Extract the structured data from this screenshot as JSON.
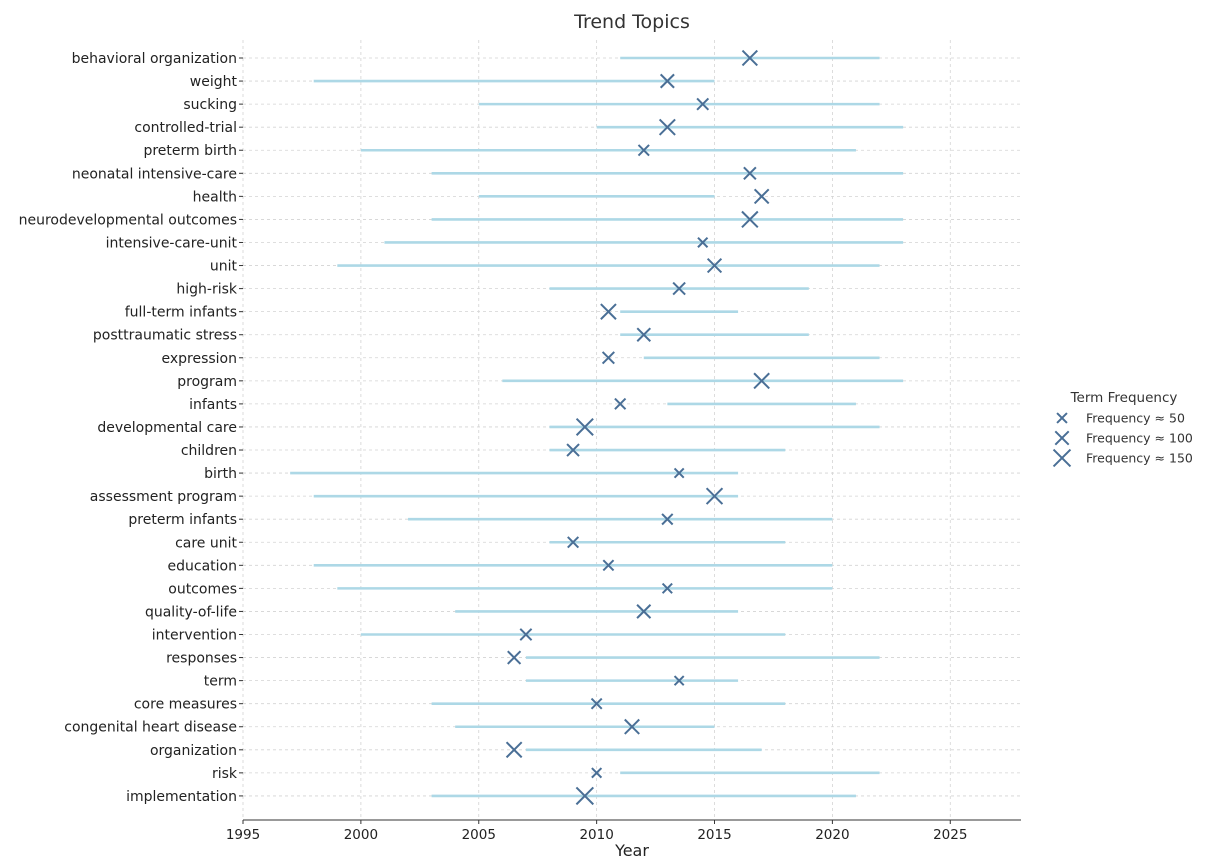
{
  "chart_data": {
    "type": "scatter",
    "title": "Trend Topics",
    "xlabel": "Year",
    "ylabel": "",
    "xlim": [
      1995,
      2028
    ],
    "xticks": [
      1995,
      2000,
      2005,
      2010,
      2015,
      2020,
      2025
    ],
    "grid": true,
    "legend": {
      "title": "Term Frequency",
      "placement": "right",
      "items": [
        {
          "label": "Frequency ≈ 50",
          "frequency": 50
        },
        {
          "label": "Frequency ≈ 100",
          "frequency": 100
        },
        {
          "label": "Frequency ≈ 150",
          "frequency": 150
        }
      ]
    },
    "colors": {
      "range_line": "#add8e6",
      "marker": "#4a6f96"
    },
    "topics": [
      {
        "term": "behavioral organization",
        "start": 2011,
        "end": 2022,
        "peak": 2016.5,
        "frequency": 120
      },
      {
        "term": "weight",
        "start": 1998,
        "end": 2015,
        "peak": 2013,
        "frequency": 100
      },
      {
        "term": "sucking",
        "start": 2005,
        "end": 2022,
        "peak": 2014.5,
        "frequency": 70
      },
      {
        "term": "controlled-trial",
        "start": 2010,
        "end": 2023,
        "peak": 2013,
        "frequency": 130
      },
      {
        "term": "preterm birth",
        "start": 2000,
        "end": 2021,
        "peak": 2012,
        "frequency": 60
      },
      {
        "term": "neonatal intensive-care",
        "start": 2003,
        "end": 2023,
        "peak": 2016.5,
        "frequency": 80
      },
      {
        "term": "health",
        "start": 2005,
        "end": 2015,
        "peak": 2017,
        "frequency": 110
      },
      {
        "term": "neurodevelopmental outcomes",
        "start": 2003,
        "end": 2023,
        "peak": 2016.5,
        "frequency": 135
      },
      {
        "term": "intensive-care-unit",
        "start": 2001,
        "end": 2023,
        "peak": 2014.5,
        "frequency": 45
      },
      {
        "term": "unit",
        "start": 1999,
        "end": 2022,
        "peak": 2015,
        "frequency": 105
      },
      {
        "term": "high-risk",
        "start": 2008,
        "end": 2019,
        "peak": 2013.5,
        "frequency": 80
      },
      {
        "term": "full-term infants",
        "start": 2011,
        "end": 2016,
        "peak": 2010.5,
        "frequency": 125
      },
      {
        "term": "posttraumatic stress",
        "start": 2011,
        "end": 2019,
        "peak": 2012,
        "frequency": 95
      },
      {
        "term": "expression",
        "start": 2012,
        "end": 2022,
        "peak": 2010.5,
        "frequency": 75
      },
      {
        "term": "program",
        "start": 2006,
        "end": 2023,
        "peak": 2017,
        "frequency": 125
      },
      {
        "term": "infants",
        "start": 2013,
        "end": 2021,
        "peak": 2011,
        "frequency": 60
      },
      {
        "term": "developmental care",
        "start": 2008,
        "end": 2022,
        "peak": 2009.5,
        "frequency": 145
      },
      {
        "term": "children",
        "start": 2008,
        "end": 2018,
        "peak": 2009,
        "frequency": 80
      },
      {
        "term": "birth",
        "start": 1997,
        "end": 2016,
        "peak": 2013.5,
        "frequency": 40
      },
      {
        "term": "assessment program",
        "start": 1998,
        "end": 2016,
        "peak": 2015,
        "frequency": 135
      },
      {
        "term": "preterm infants",
        "start": 2002,
        "end": 2020,
        "peak": 2013,
        "frequency": 60
      },
      {
        "term": "care unit",
        "start": 2008,
        "end": 2018,
        "peak": 2009,
        "frequency": 60
      },
      {
        "term": "education",
        "start": 1998,
        "end": 2020,
        "peak": 2010.5,
        "frequency": 55
      },
      {
        "term": "outcomes",
        "start": 1999,
        "end": 2020,
        "peak": 2013,
        "frequency": 45
      },
      {
        "term": "quality-of-life",
        "start": 2004,
        "end": 2016,
        "peak": 2012,
        "frequency": 100
      },
      {
        "term": "intervention",
        "start": 2000,
        "end": 2018,
        "peak": 2007,
        "frequency": 70
      },
      {
        "term": "responses",
        "start": 2007,
        "end": 2022,
        "peak": 2006.5,
        "frequency": 90
      },
      {
        "term": "term",
        "start": 2007,
        "end": 2016,
        "peak": 2013.5,
        "frequency": 40
      },
      {
        "term": "core measures",
        "start": 2003,
        "end": 2018,
        "peak": 2010,
        "frequency": 55
      },
      {
        "term": "congenital heart disease",
        "start": 2004,
        "end": 2015,
        "peak": 2011.5,
        "frequency": 115
      },
      {
        "term": "organization",
        "start": 2007,
        "end": 2017,
        "peak": 2006.5,
        "frequency": 125
      },
      {
        "term": "risk",
        "start": 2011,
        "end": 2022,
        "peak": 2010,
        "frequency": 45
      },
      {
        "term": "implementation",
        "start": 2003,
        "end": 2021,
        "peak": 2009.5,
        "frequency": 150
      }
    ]
  }
}
